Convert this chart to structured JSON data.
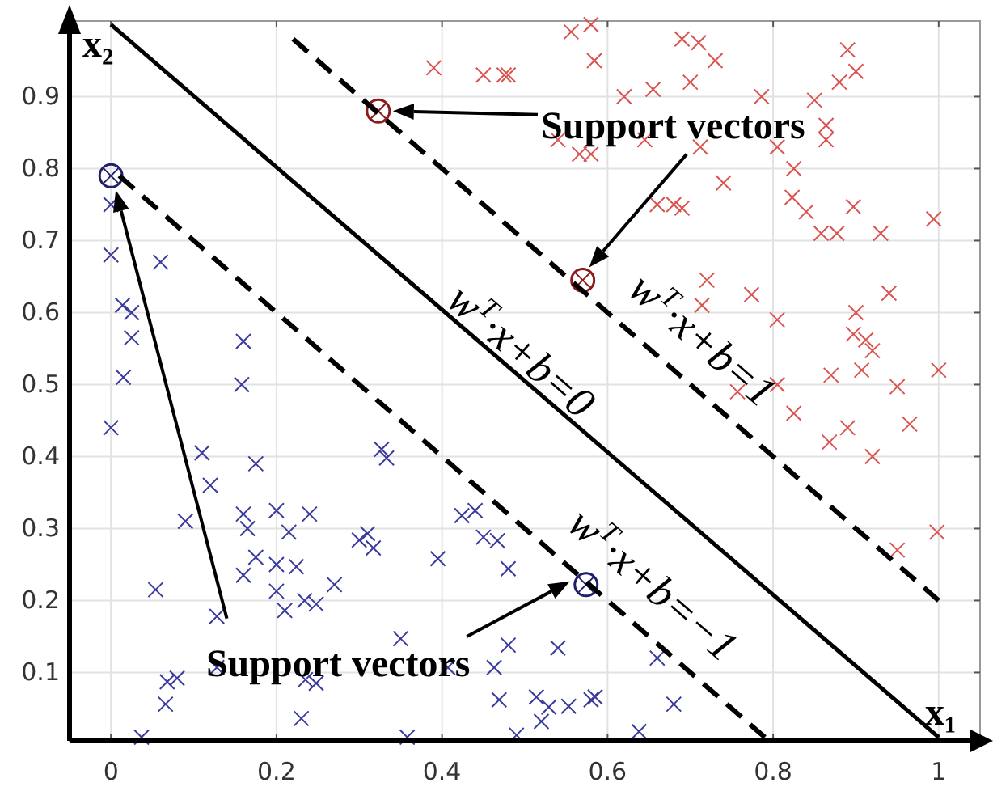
{
  "chart_data": {
    "type": "scatter",
    "xlabel": "x₁",
    "ylabel": "x₂",
    "xlim": [
      -0.05,
      1.05
    ],
    "ylim": [
      0.005,
      1.005
    ],
    "xticks": [
      0,
      0.2,
      0.4,
      0.6,
      0.8,
      1
    ],
    "yticks": [
      0.1,
      0.2,
      0.3,
      0.4,
      0.5,
      0.6,
      0.7,
      0.8,
      0.9
    ],
    "grid": true,
    "marker": "cross",
    "series": [
      {
        "color": "#d9534f",
        "x": [
          0.39,
          0.45,
          0.475,
          0.48,
          0.556,
          0.58,
          0.584,
          0.69,
          0.71,
          0.73,
          0.7,
          0.655,
          0.62,
          0.786,
          0.85,
          0.864,
          0.88,
          0.9,
          0.89,
          0.54,
          0.566,
          0.58,
          0.645,
          0.712,
          0.805,
          0.864,
          0.825,
          0.74,
          0.66,
          0.68,
          0.69,
          0.823,
          0.84,
          0.897,
          0.858,
          0.877,
          0.93,
          0.994,
          0.72,
          0.714,
          0.774,
          0.805,
          0.94,
          0.9,
          0.897,
          0.912,
          0.92,
          0.907,
          0.87,
          0.805,
          0.757,
          0.95,
          1.0,
          0.825,
          0.868,
          0.89,
          0.92,
          0.965,
          0.95,
          0.998
        ],
        "values": [
          0.94,
          0.93,
          0.93,
          0.93,
          0.99,
          1.0,
          0.95,
          0.98,
          0.975,
          0.95,
          0.92,
          0.91,
          0.9,
          0.9,
          0.895,
          0.86,
          0.92,
          0.935,
          0.965,
          0.84,
          0.82,
          0.82,
          0.84,
          0.83,
          0.83,
          0.84,
          0.8,
          0.78,
          0.75,
          0.75,
          0.745,
          0.76,
          0.74,
          0.747,
          0.71,
          0.71,
          0.71,
          0.73,
          0.645,
          0.61,
          0.625,
          0.59,
          0.627,
          0.6,
          0.57,
          0.562,
          0.547,
          0.52,
          0.513,
          0.5,
          0.49,
          0.497,
          0.52,
          0.46,
          0.42,
          0.44,
          0.4,
          0.445,
          0.27,
          0.295
        ]
      },
      {
        "color": "#3a3a9c",
        "x": [
          0.0,
          0.0,
          0.06,
          0.014,
          0.025,
          0.025,
          0.16,
          0.015,
          0.158,
          0.0,
          0.11,
          0.175,
          0.12,
          0.09,
          0.16,
          0.165,
          0.2,
          0.215,
          0.24,
          0.175,
          0.16,
          0.2,
          0.224,
          0.2,
          0.21,
          0.234,
          0.248,
          0.27,
          0.054,
          0.128,
          0.3,
          0.31,
          0.317,
          0.327,
          0.333,
          0.395,
          0.424,
          0.44,
          0.45,
          0.467,
          0.48,
          0.48,
          0.463,
          0.469,
          0.407,
          0.35,
          0.068,
          0.08,
          0.066,
          0.235,
          0.248,
          0.23,
          0.037,
          0.358,
          0.128,
          0.54,
          0.514,
          0.529,
          0.52,
          0.553,
          0.58,
          0.585,
          0.66,
          0.68,
          0.638,
          0.49
        ],
        "values": [
          0.75,
          0.68,
          0.67,
          0.61,
          0.6,
          0.565,
          0.56,
          0.51,
          0.5,
          0.44,
          0.405,
          0.39,
          0.36,
          0.31,
          0.32,
          0.3,
          0.325,
          0.295,
          0.32,
          0.26,
          0.235,
          0.25,
          0.247,
          0.213,
          0.186,
          0.2,
          0.195,
          0.222,
          0.215,
          0.178,
          0.284,
          0.293,
          0.273,
          0.41,
          0.398,
          0.258,
          0.318,
          0.325,
          0.288,
          0.283,
          0.244,
          0.138,
          0.107,
          0.062,
          0.107,
          0.147,
          0.087,
          0.092,
          0.056,
          0.09,
          0.085,
          0.036,
          0.01,
          0.01,
          0.107,
          0.134,
          0.066,
          0.052,
          0.032,
          0.053,
          0.062,
          0.066,
          0.12,
          0.056,
          0.018,
          0.013
        ]
      },
      {
        "color": "#8b1a1a",
        "marker": "circle",
        "x": [
          0.323,
          0.57
        ],
        "values": [
          0.88,
          0.645
        ]
      },
      {
        "color": "#1f1f6b",
        "marker": "circle",
        "x": [
          0.0,
          0.574
        ],
        "values": [
          0.79,
          0.222
        ]
      },
      {
        "type": "line",
        "marker": "none",
        "color": "#000000",
        "line_style": "solid",
        "x": [
          0.0,
          1.0
        ],
        "values": [
          1.0,
          0.01
        ]
      },
      {
        "type": "line",
        "marker": "none",
        "color": "#000000",
        "line_style": "dashed",
        "x": [
          0.22,
          1.0
        ],
        "values": [
          0.98,
          0.2
        ]
      },
      {
        "type": "line",
        "marker": "none",
        "color": "#000000",
        "line_style": "dashed",
        "x": [
          0.01,
          0.79
        ],
        "values": [
          0.79,
          0.01
        ]
      }
    ],
    "annotations": [
      "Support vectors",
      "Support vectors",
      {
        "text": "w$^{T}$·x+b=0",
        "x": 0.5,
        "y": 0.5
      },
      {
        "text": "w$^{T}$·x+b=1",
        "x": 0.68,
        "y": 0.52
      },
      {
        "text": "w$^{T}$·x+b=−1",
        "x": 0.62,
        "y": 0.18
      }
    ]
  }
}
